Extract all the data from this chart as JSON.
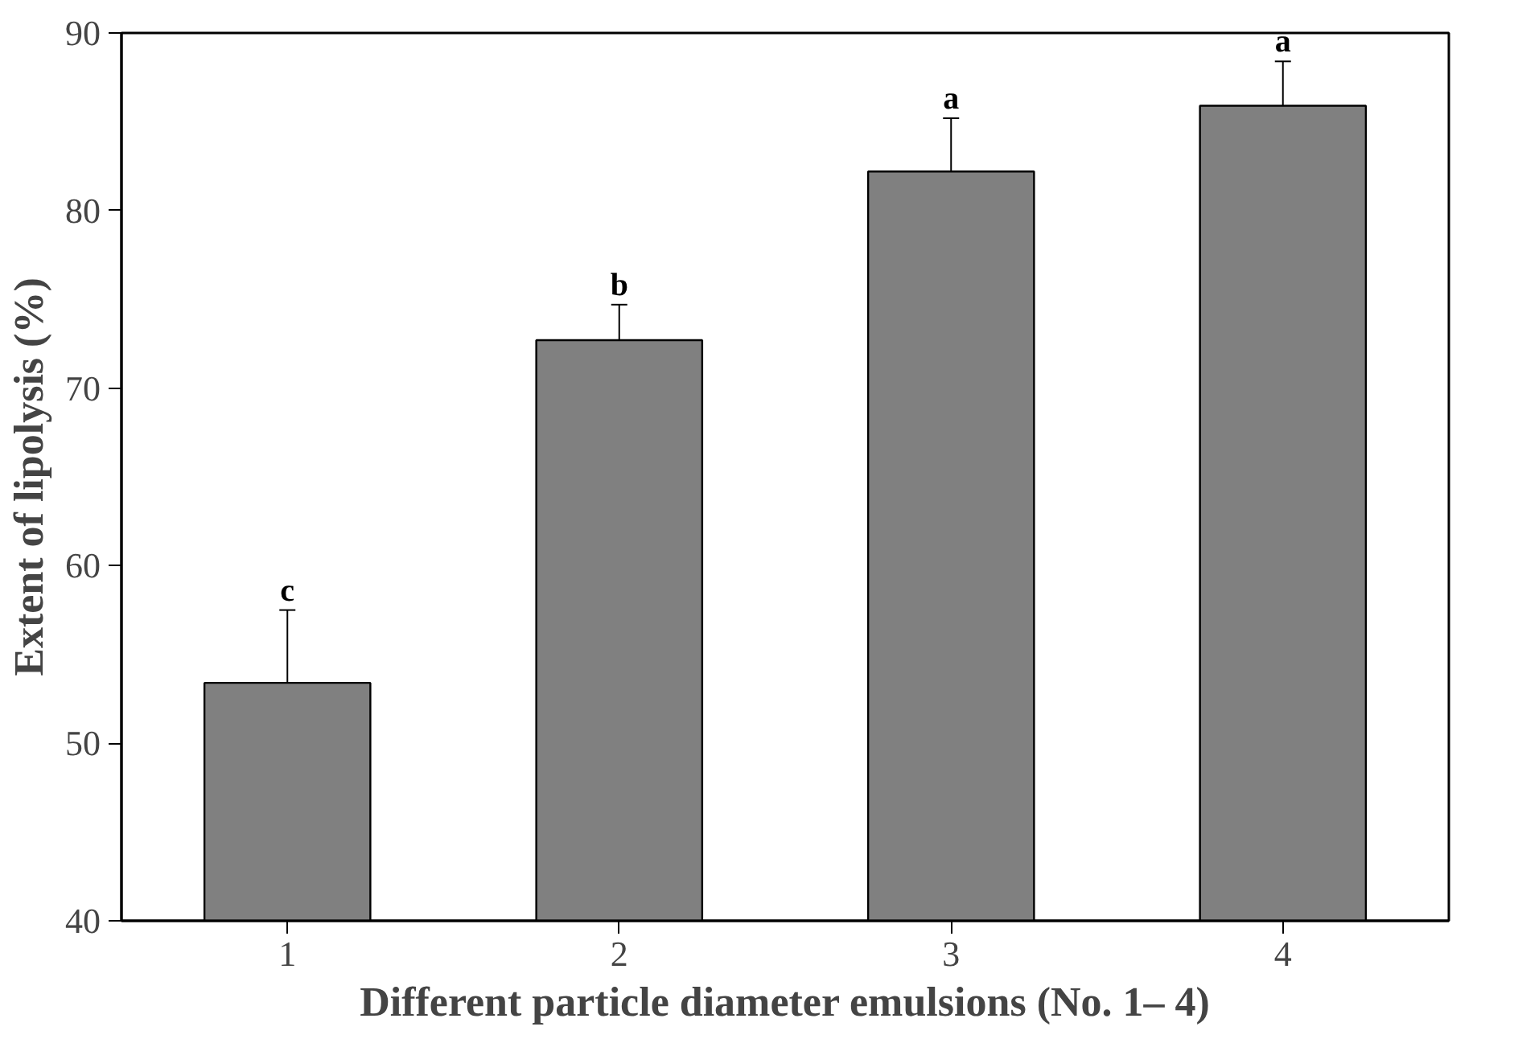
{
  "chart_data": {
    "type": "bar",
    "xlabel": "Different particle diameter emulsions (No. 1– 4)",
    "ylabel": "Extent of lipolysis (%)",
    "categories": [
      "1",
      "2",
      "3",
      "4"
    ],
    "values": [
      53.4,
      72.7,
      82.2,
      85.9
    ],
    "errors": [
      4.1,
      2.0,
      3.0,
      2.5
    ],
    "color": "#808080",
    "ylim": [
      40,
      90
    ],
    "yticks": [
      40,
      50,
      60,
      70,
      80,
      90
    ],
    "grid": false,
    "annotations": [
      "c",
      "b",
      "a",
      "a"
    ]
  }
}
